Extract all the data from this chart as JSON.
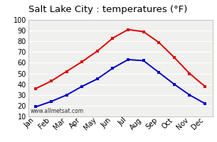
{
  "title": "Salt Lake City : temperatures (°F)",
  "months": [
    "Jan",
    "Feb",
    "Mar",
    "Apr",
    "May",
    "Jun",
    "Jul",
    "Aug",
    "Sep",
    "Oct",
    "Nov",
    "Dec"
  ],
  "high_temps": [
    36,
    43,
    52,
    61,
    71,
    83,
    91,
    89,
    79,
    65,
    50,
    38
  ],
  "low_temps": [
    19,
    24,
    30,
    38,
    45,
    55,
    63,
    62,
    51,
    40,
    30,
    22
  ],
  "high_color": "#dd0000",
  "low_color": "#0000cc",
  "ylim": [
    10,
    100
  ],
  "yticks": [
    10,
    20,
    30,
    40,
    50,
    60,
    70,
    80,
    90,
    100
  ],
  "bg_color": "#ffffff",
  "plot_bg_color": "#f0f0ee",
  "grid_color": "#ffffff",
  "watermark": "www.allmetsat.com",
  "title_fontsize": 9.5,
  "tick_fontsize": 7,
  "marker": "s",
  "markersize": 3,
  "linewidth": 1.4
}
